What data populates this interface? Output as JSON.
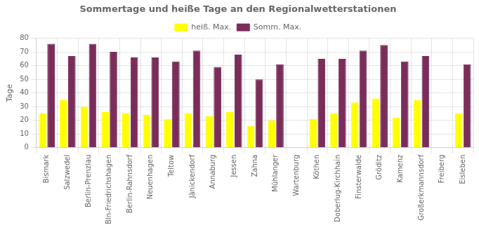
{
  "chart_data": {
    "type": "bar",
    "title": "Sommertage und heiße Tage an den Regionalwetterstationen",
    "ylabel": "Tage",
    "categories": [
      "Bismark",
      "Salzwedel",
      "Berlin-Prenzlau",
      "Bln-Friedrichshagen",
      "Berlin-Rahnsdorf",
      "Neuenhagen",
      "Teltow",
      "Jänickendorf",
      "Annaburg",
      "Jessen",
      "Zahna",
      "Mühlanger",
      "Wartenburg",
      "Köthen",
      "Doberlug-Kirchhain",
      "Finsterwalde",
      "Gröditz",
      "Kamenz",
      "Großerkmannsdorf",
      "Freiberg",
      "Eisleben"
    ],
    "series": [
      {
        "name": "heiß. Max.",
        "color": "#FFFF00",
        "values": [
          25,
          35,
          30,
          26,
          25,
          24,
          21,
          25,
          23,
          26,
          16,
          20,
          0,
          21,
          25,
          33,
          36,
          22,
          35,
          0,
          25
        ]
      },
      {
        "name": "Somm. Max.",
        "color": "#7B2D5A",
        "values": [
          76,
          67,
          76,
          70,
          66,
          66,
          63,
          71,
          59,
          68,
          50,
          61,
          0,
          65,
          65,
          71,
          75,
          63,
          67,
          0,
          61
        ]
      }
    ],
    "ylim": [
      0,
      80
    ],
    "yticks": [
      0,
      10,
      20,
      30,
      40,
      50,
      60,
      70,
      80
    ],
    "grid": true,
    "legend": "top"
  }
}
